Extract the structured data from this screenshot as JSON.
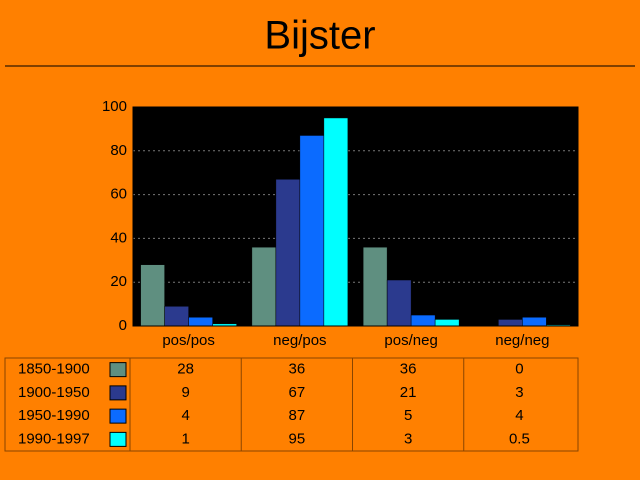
{
  "chart_data": {
    "type": "bar",
    "title": "Bijster",
    "categories": [
      "pos/pos",
      "neg/pos",
      "pos/neg",
      "neg/neg"
    ],
    "series": [
      {
        "name": "1850-1900",
        "color": "#5f8f80",
        "values": [
          28,
          36,
          36,
          0
        ]
      },
      {
        "name": "1900-1950",
        "color": "#2b3a8e",
        "values": [
          9,
          67,
          21,
          3
        ]
      },
      {
        "name": "1950-1990",
        "color": "#0b6bff",
        "values": [
          4,
          87,
          5,
          4
        ]
      },
      {
        "name": "1990-1997",
        "color": "#00ffff",
        "values": [
          1,
          95,
          3,
          0.5
        ]
      }
    ],
    "ylim": [
      0,
      100
    ],
    "yticks": [
      0,
      20,
      40,
      60,
      80,
      100
    ],
    "grid": true
  }
}
